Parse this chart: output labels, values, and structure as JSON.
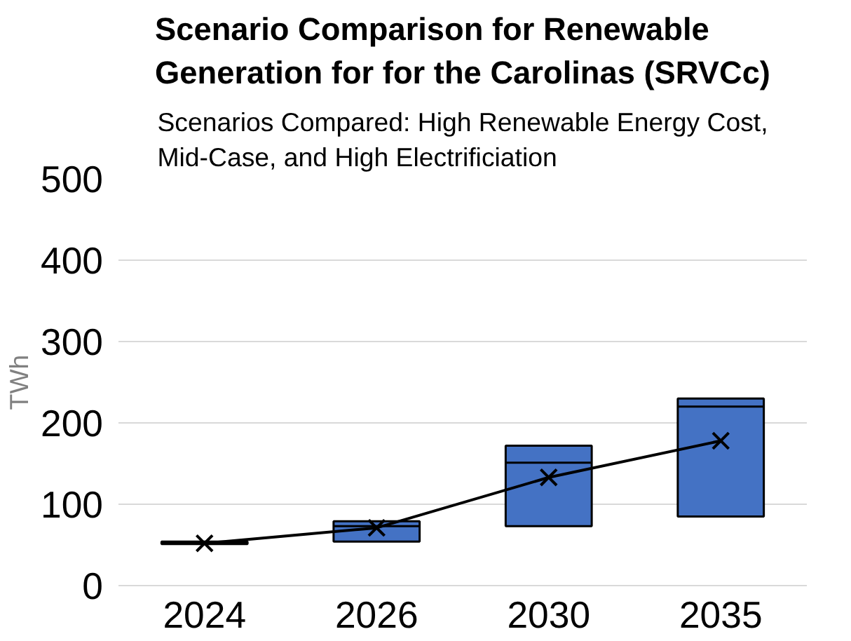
{
  "chart_data": {
    "type": "box",
    "title": "Scenario Comparison for Renewable\nGeneration for for the Carolinas (SRVCc)",
    "subtitle": "Scenarios Compared: High Renewable Energy Cost,\nMid-Case, and High Electrificiation",
    "ylabel": "TWh",
    "categories": [
      "2024",
      "2026",
      "2030",
      "2035"
    ],
    "series": [
      {
        "color": "#4472c4",
        "boxes": [
          {
            "low": 51,
            "q1": 51,
            "median": 53,
            "q3": 54,
            "high": 54
          },
          {
            "low": 54,
            "q1": 54,
            "median": 73,
            "q3": 79,
            "high": 79
          },
          {
            "low": 73,
            "q1": 73,
            "median": 151,
            "q3": 172,
            "high": 172
          },
          {
            "low": 85,
            "q1": 85,
            "median": 220,
            "q3": 230,
            "high": 230
          }
        ]
      },
      {
        "type": "line",
        "color": "#000000",
        "marker": "cross",
        "values": [
          52,
          71,
          133,
          178
        ]
      }
    ],
    "ylim": [
      0,
      500
    ],
    "yticks": [
      0,
      100,
      200,
      300,
      400,
      500
    ],
    "grid": "y"
  }
}
